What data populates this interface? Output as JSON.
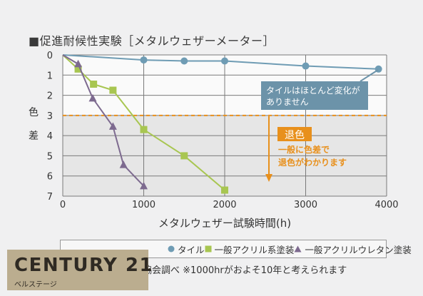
{
  "title": "■促進耐候性実験［メタルウェザーメーター］",
  "chart_data": {
    "type": "line",
    "xlabel": "メタルウェザー試験時間(h)",
    "ylabel": "色差",
    "xlim": [
      0,
      4000
    ],
    "ylim": [
      0,
      7
    ],
    "x_ticks": [
      "0",
      "1000",
      "2000",
      "3000",
      "4000"
    ],
    "y_ticks": [
      "0",
      "1",
      "2",
      "3",
      "4",
      "5",
      "6",
      "7"
    ],
    "reversed_y": true,
    "grid": true,
    "threshold": {
      "y": 3,
      "color": "#e8901c"
    },
    "series": [
      {
        "name": "タイル",
        "color": "#6f9cb4",
        "marker": "circle",
        "points": [
          [
            0,
            0
          ],
          [
            1000,
            0.25
          ],
          [
            1500,
            0.3
          ],
          [
            2000,
            0.3
          ],
          [
            3000,
            0.55
          ],
          [
            3900,
            0.7
          ]
        ]
      },
      {
        "name": "一般アクリル系塗装",
        "color": "#a8c651",
        "marker": "square",
        "points": [
          [
            0,
            0
          ],
          [
            190,
            0.7
          ],
          [
            380,
            1.45
          ],
          [
            620,
            1.75
          ],
          [
            1000,
            3.7
          ],
          [
            1500,
            5.0
          ],
          [
            2000,
            6.7
          ]
        ]
      },
      {
        "name": "一般アクリルウレタン塗装",
        "color": "#7d6a8f",
        "marker": "triangle",
        "points": [
          [
            0,
            0
          ],
          [
            190,
            0.45
          ],
          [
            370,
            2.15
          ],
          [
            620,
            3.55
          ],
          [
            750,
            5.45
          ],
          [
            1000,
            6.5
          ]
        ]
      }
    ],
    "annotations": [
      {
        "id": "tile",
        "line1": "タイルはほとんど変化が",
        "line2": "ありません",
        "color": "#6c93a9"
      },
      {
        "id": "threshold",
        "badge": "退色",
        "line1": "一般に色差で",
        "line2": "退色がわかります",
        "color": "#e8901c"
      }
    ],
    "legend": [
      "タイル",
      "一般アクリル系塗装",
      "一般アクリルウレタン塗装"
    ]
  },
  "footnote": "協会調べ ※1000hrがおよそ10年と考えられます",
  "logo": {
    "main": "CENTURY 21",
    "sub": "ベルステージ"
  }
}
